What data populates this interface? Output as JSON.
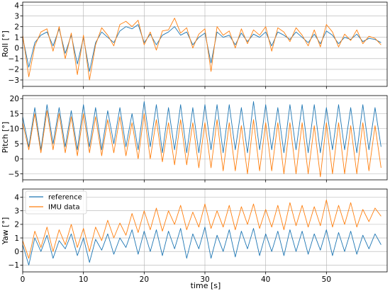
{
  "chart_data": [
    {
      "type": "line",
      "ylabel": "Roll [°]",
      "ylim": [
        -3.6,
        4.3
      ],
      "yticks": [
        -3,
        -2,
        -1,
        0,
        1,
        2,
        3,
        4
      ],
      "xlim": [
        0,
        60
      ],
      "xticks": [
        0,
        10,
        20,
        30,
        40,
        50
      ],
      "grid": true,
      "series": [
        {
          "name": "reference",
          "color": "#1f77b4",
          "x": [
            0,
            1,
            2,
            3,
            4,
            5,
            6,
            7,
            8,
            9,
            10,
            11,
            12,
            13,
            14,
            15,
            16,
            17,
            18,
            19,
            20,
            21,
            22,
            23,
            24,
            25,
            26,
            27,
            28,
            29,
            30,
            31,
            32,
            33,
            34,
            35,
            36,
            37,
            38,
            39,
            40,
            41,
            42,
            43,
            44,
            45,
            46,
            47,
            48,
            49,
            50,
            51,
            52,
            53,
            54,
            55,
            56,
            57,
            58,
            59
          ],
          "y": [
            1.0,
            -1.8,
            0.5,
            1.2,
            1.5,
            0.2,
            1.8,
            -0.5,
            1.2,
            -1.5,
            1.0,
            -2.2,
            0.5,
            1.5,
            1.0,
            0.5,
            1.6,
            2.0,
            1.8,
            2.2,
            0.5,
            1.3,
            0.3,
            1.2,
            1.5,
            2.0,
            1.2,
            1.5,
            0.3,
            1.0,
            1.4,
            -1.4,
            1.5,
            1.0,
            1.2,
            0.3,
            1.4,
            0.6,
            1.3,
            1.0,
            1.5,
            0.2,
            1.5,
            1.2,
            0.8,
            1.5,
            1.0,
            0.5,
            1.3,
            0.4,
            1.6,
            1.2,
            0.4,
            1.0,
            0.8,
            1.3,
            0.6,
            0.9,
            0.8,
            0.5
          ]
        },
        {
          "name": "IMU data",
          "color": "#ff7f0e",
          "x": [
            0,
            1,
            2,
            3,
            4,
            5,
            6,
            7,
            8,
            9,
            10,
            11,
            12,
            13,
            14,
            15,
            16,
            17,
            18,
            19,
            20,
            21,
            22,
            23,
            24,
            25,
            26,
            27,
            28,
            29,
            30,
            31,
            32,
            33,
            34,
            35,
            36,
            37,
            38,
            39,
            40,
            41,
            42,
            43,
            44,
            45,
            46,
            47,
            48,
            49,
            50,
            51,
            52,
            53,
            54,
            55,
            56,
            57,
            58,
            59
          ],
          "y": [
            1.2,
            -2.7,
            0.2,
            1.5,
            1.8,
            -0.3,
            2.0,
            -1.0,
            1.4,
            -2.5,
            1.2,
            -3.0,
            0.3,
            1.9,
            1.2,
            0.2,
            2.2,
            2.5,
            2.0,
            2.6,
            0.3,
            1.5,
            -0.2,
            1.6,
            1.7,
            2.8,
            1.4,
            1.9,
            0.0,
            1.3,
            1.8,
            -2.2,
            2.0,
            1.2,
            1.6,
            0.0,
            1.8,
            0.4,
            1.7,
            1.2,
            2.0,
            -0.3,
            1.9,
            1.5,
            0.6,
            1.9,
            1.2,
            0.2,
            1.7,
            0.1,
            2.2,
            1.5,
            0.1,
            1.3,
            0.7,
            1.7,
            0.4,
            1.1,
            0.9,
            0.3
          ]
        }
      ]
    },
    {
      "type": "line",
      "ylabel": "Pitch [°]",
      "ylim": [
        -7,
        21
      ],
      "yticks": [
        -5,
        0,
        5,
        10,
        15,
        20
      ],
      "xlim": [
        0,
        60
      ],
      "xticks": [
        0,
        10,
        20,
        30,
        40,
        50
      ],
      "grid": true,
      "series": [
        {
          "name": "reference",
          "color": "#1f77b4",
          "x": [
            0,
            1,
            2,
            3,
            4,
            5,
            6,
            7,
            8,
            9,
            10,
            11,
            12,
            13,
            14,
            15,
            16,
            17,
            18,
            19,
            20,
            21,
            22,
            23,
            24,
            25,
            26,
            27,
            28,
            29,
            30,
            31,
            32,
            33,
            34,
            35,
            36,
            37,
            38,
            39,
            40,
            41,
            42,
            43,
            44,
            45,
            46,
            47,
            48,
            49,
            50,
            51,
            52,
            53,
            54,
            55,
            56,
            57,
            58,
            59
          ],
          "y": [
            14,
            4,
            17,
            3,
            18,
            5,
            17,
            4,
            16,
            3,
            18,
            4,
            17,
            3,
            16,
            5,
            17,
            4,
            15,
            3,
            19,
            4,
            18,
            2,
            17,
            3,
            18,
            2,
            17,
            2,
            18,
            3,
            18,
            2,
            18,
            3,
            17,
            2,
            19,
            3,
            18,
            3,
            17,
            2,
            18,
            3,
            18,
            2,
            18,
            2,
            17,
            3,
            18,
            3,
            17,
            2,
            18,
            3,
            17,
            4
          ]
        },
        {
          "name": "IMU data",
          "color": "#ff7f0e",
          "x": [
            0,
            1,
            2,
            3,
            4,
            5,
            6,
            7,
            8,
            9,
            10,
            11,
            12,
            13,
            14,
            15,
            16,
            17,
            18,
            19,
            20,
            21,
            22,
            23,
            24,
            25,
            26,
            27,
            28,
            29,
            30,
            31,
            32,
            33,
            34,
            35,
            36,
            37,
            38,
            39,
            40,
            41,
            42,
            43,
            44,
            45,
            46,
            47,
            48,
            49,
            50,
            51,
            52,
            53,
            54,
            55,
            56,
            57,
            58,
            59
          ],
          "y": [
            12,
            3,
            15,
            2,
            16,
            3,
            15,
            2,
            14,
            1,
            15,
            2,
            14,
            1,
            13,
            2,
            14,
            1,
            12,
            0,
            15,
            0,
            13,
            -1,
            12,
            -2,
            13,
            -2,
            12,
            -3,
            12,
            -3,
            13,
            -4,
            12,
            -4,
            11,
            -5,
            13,
            -4,
            12,
            -4,
            12,
            -5,
            12,
            -5,
            12,
            -5,
            11,
            -6,
            12,
            -5,
            12,
            -5,
            11,
            -5,
            12,
            -4,
            11,
            -3
          ]
        }
      ]
    },
    {
      "type": "line",
      "ylabel": "Yaw [°]",
      "xlabel": "time [s]",
      "ylim": [
        -1.5,
        4.6
      ],
      "yticks": [
        -1,
        0,
        1,
        2,
        3,
        4
      ],
      "xlim": [
        0,
        60
      ],
      "xticks": [
        0,
        10,
        20,
        30,
        40,
        50
      ],
      "grid": true,
      "legend": "upper-left",
      "series": [
        {
          "name": "reference",
          "color": "#1f77b4",
          "x": [
            0,
            1,
            2,
            3,
            4,
            5,
            6,
            7,
            8,
            9,
            10,
            11,
            12,
            13,
            14,
            15,
            16,
            17,
            18,
            19,
            20,
            21,
            22,
            23,
            24,
            25,
            26,
            27,
            28,
            29,
            30,
            31,
            32,
            33,
            34,
            35,
            36,
            37,
            38,
            39,
            40,
            41,
            42,
            43,
            44,
            45,
            46,
            47,
            48,
            49,
            50,
            51,
            52,
            53,
            54,
            55,
            56,
            57,
            58,
            59
          ],
          "y": [
            0.5,
            -1.0,
            1.0,
            0.0,
            1.2,
            -0.5,
            0.8,
            0.2,
            1.3,
            -0.3,
            1.0,
            -0.8,
            0.9,
            0.1,
            1.3,
            -0.2,
            1.0,
            0.3,
            1.6,
            -0.2,
            1.5,
            0.0,
            1.6,
            -0.3,
            1.5,
            0.2,
            1.7,
            -0.5,
            1.3,
            0.2,
            1.8,
            -0.5,
            1.2,
            0.0,
            1.6,
            -0.4,
            1.5,
            0.2,
            1.7,
            -0.3,
            1.3,
            0.0,
            1.5,
            -0.3,
            1.6,
            0.0,
            1.5,
            -0.2,
            1.3,
            0.1,
            1.6,
            -0.3,
            1.4,
            0.0,
            1.5,
            -0.2,
            1.2,
            0.2,
            1.3,
            0.5
          ]
        },
        {
          "name": "IMU data",
          "color": "#ff7f0e",
          "x": [
            0,
            1,
            2,
            3,
            4,
            5,
            6,
            7,
            8,
            9,
            10,
            11,
            12,
            13,
            14,
            15,
            16,
            17,
            18,
            19,
            20,
            21,
            22,
            23,
            24,
            25,
            26,
            27,
            28,
            29,
            30,
            31,
            32,
            33,
            34,
            35,
            36,
            37,
            38,
            39,
            40,
            41,
            42,
            43,
            44,
            45,
            46,
            47,
            48,
            49,
            50,
            51,
            52,
            53,
            54,
            55,
            56,
            57,
            58,
            59
          ],
          "y": [
            0.8,
            -0.5,
            1.5,
            0.3,
            1.8,
            0.0,
            1.6,
            0.5,
            2.0,
            0.3,
            1.7,
            0.0,
            1.8,
            0.8,
            2.3,
            1.0,
            2.1,
            1.2,
            2.8,
            1.4,
            3.0,
            1.6,
            3.2,
            1.5,
            3.0,
            2.0,
            3.4,
            1.6,
            2.9,
            1.8,
            3.5,
            1.7,
            3.0,
            1.8,
            3.4,
            1.6,
            3.3,
            2.0,
            3.5,
            1.7,
            3.1,
            1.8,
            3.4,
            1.6,
            3.6,
            1.9,
            3.4,
            1.8,
            3.3,
            1.9,
            3.8,
            1.8,
            3.4,
            2.0,
            3.6,
            1.8,
            3.1,
            2.2,
            3.2,
            2.6
          ]
        }
      ]
    }
  ]
}
